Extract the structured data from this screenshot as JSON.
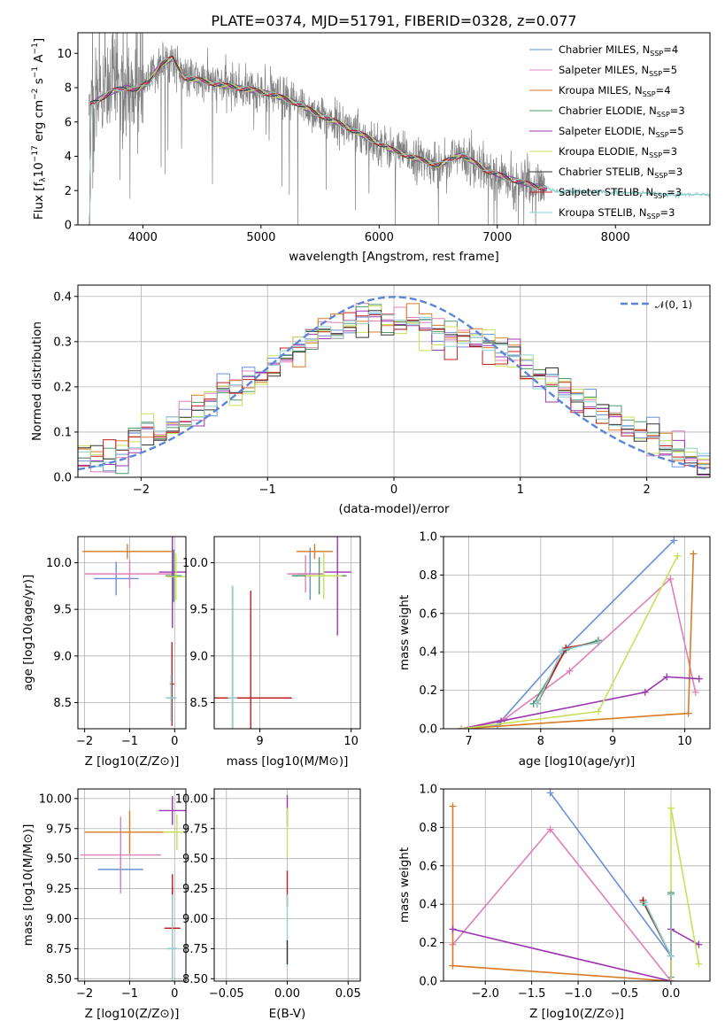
{
  "figure_title": "PLATE=0374, MJD=51791, FIBERID=0328, z=0.077",
  "models": [
    {
      "name": "Chabrier MILES",
      "nssp": "4",
      "color": "#6a8fd8"
    },
    {
      "name": "Salpeter MILES",
      "nssp": "5",
      "color": "#e080b8"
    },
    {
      "name": "Kroupa MILES",
      "nssp": "4",
      "color": "#d97a24"
    },
    {
      "name": "Chabrier ELODIE",
      "nssp": "3",
      "color": "#4f9a6a"
    },
    {
      "name": "Salpeter ELODIE",
      "nssp": "5",
      "color": "#9b36b0"
    },
    {
      "name": "Kroupa ELODIE",
      "nssp": "3",
      "color": "#c8e05a"
    },
    {
      "name": "Chabrier STELIB",
      "nssp": "3",
      "color": "#333333"
    },
    {
      "name": "Salpeter STELIB",
      "nssp": "3",
      "color": "#c02020"
    },
    {
      "name": "Kroupa STELIB",
      "nssp": "3",
      "color": "#8fd0d0"
    }
  ],
  "chart_data": [
    {
      "type": "line",
      "id": "spectrum",
      "xlabel": "wavelength [Angstrom, rest frame]",
      "ylabel": "Flux [f_λ 10^-17 erg cm^-2 s^-1 A^-1]",
      "xlim": [
        3450,
        8800
      ],
      "ylim": [
        0,
        11.2
      ],
      "xticks": [
        4000,
        5000,
        6000,
        7000,
        8000
      ],
      "yticks": [
        0,
        2,
        4,
        6,
        8,
        10
      ],
      "data_color": "#808080",
      "continuum": [
        [
          3550,
          7.0
        ],
        [
          3650,
          7.4
        ],
        [
          3750,
          7.8
        ],
        [
          3850,
          8.0
        ],
        [
          3950,
          7.9
        ],
        [
          4050,
          8.3
        ],
        [
          4150,
          9.4
        ],
        [
          4250,
          9.7
        ],
        [
          4350,
          8.6
        ],
        [
          4500,
          8.4
        ],
        [
          4700,
          8.1
        ],
        [
          4900,
          7.9
        ],
        [
          5100,
          7.6
        ],
        [
          5300,
          7.1
        ],
        [
          5500,
          6.4
        ],
        [
          5700,
          5.8
        ],
        [
          5900,
          5.1
        ],
        [
          6100,
          4.4
        ],
        [
          6300,
          3.9
        ],
        [
          6500,
          3.5
        ],
        [
          6600,
          3.8
        ],
        [
          6700,
          4.1
        ],
        [
          6900,
          3.2
        ],
        [
          7100,
          2.7
        ],
        [
          7300,
          2.3
        ],
        [
          7500,
          2.0
        ],
        [
          7800,
          1.9
        ],
        [
          8100,
          1.9
        ],
        [
          8400,
          1.8
        ],
        [
          8800,
          1.7
        ]
      ],
      "legend_location": "upper right"
    },
    {
      "type": "step",
      "id": "residuals",
      "xlabel": "(data-model)/error",
      "ylabel": "Normed distribution",
      "xlim": [
        -2.5,
        2.5
      ],
      "ylim": [
        0,
        0.425
      ],
      "xticks": [
        -2,
        -1,
        0,
        1,
        2
      ],
      "yticks": [
        0.0,
        0.1,
        0.2,
        0.3,
        0.4
      ],
      "bin_width": 0.1,
      "envelope": [
        [
          -2.5,
          0.035
        ],
        [
          -2.3,
          0.04
        ],
        [
          -2.1,
          0.06
        ],
        [
          -2.0,
          0.1
        ],
        [
          -1.8,
          0.1
        ],
        [
          -1.6,
          0.14
        ],
        [
          -1.4,
          0.17
        ],
        [
          -1.2,
          0.2
        ],
        [
          -1.0,
          0.24
        ],
        [
          -0.8,
          0.28
        ],
        [
          -0.6,
          0.31
        ],
        [
          -0.4,
          0.33
        ],
        [
          -0.2,
          0.36
        ],
        [
          0.0,
          0.34
        ],
        [
          0.2,
          0.35
        ],
        [
          0.4,
          0.31
        ],
        [
          0.6,
          0.3
        ],
        [
          0.8,
          0.29
        ],
        [
          1.0,
          0.26
        ],
        [
          1.2,
          0.22
        ],
        [
          1.4,
          0.18
        ],
        [
          1.6,
          0.15
        ],
        [
          1.8,
          0.12
        ],
        [
          2.0,
          0.09
        ],
        [
          2.2,
          0.06
        ],
        [
          2.4,
          0.04
        ],
        [
          2.5,
          0.04
        ]
      ],
      "gaussian": {
        "label": "𝒩(0, 1)",
        "color": "#5b86d6"
      },
      "legend_location": "upper right"
    },
    {
      "type": "errorbar",
      "id": "age-vs-z",
      "xlabel": "Z [log10(Z/Z⊙)]",
      "ylabel": "age [log10(age/yr)]",
      "xlim": [
        -2.15,
        0.25
      ],
      "ylim": [
        8.22,
        10.28
      ],
      "xticks": [
        -2,
        -1,
        0
      ],
      "yticks": [
        8.5,
        9.0,
        9.5,
        10.0
      ],
      "points": [
        {
          "m": 0,
          "x": -1.3,
          "y": 9.83,
          "xe": 0.5,
          "ye": 0.18
        },
        {
          "m": 1,
          "x": -1.0,
          "y": 9.88,
          "xe": 1.0,
          "ye": 0.15
        },
        {
          "m": 2,
          "x": -1.05,
          "y": 10.12,
          "xe": 1.0,
          "ye": 0.08
        },
        {
          "m": 3,
          "x": -0.02,
          "y": 9.86,
          "xe": 0.18,
          "ye": 0.28
        },
        {
          "m": 4,
          "x": -0.05,
          "y": 9.9,
          "xe": 0.3,
          "ye": 0.6
        },
        {
          "m": 5,
          "x": 0.03,
          "y": 9.85,
          "xe": 0.2,
          "ye": 0.25
        },
        {
          "m": 6,
          "x": -0.07,
          "y": 8.55,
          "xe": 0.1,
          "ye": 0.2
        },
        {
          "m": 7,
          "x": -0.06,
          "y": 8.7,
          "xe": 0.05,
          "ye": 0.45
        },
        {
          "m": 8,
          "x": -0.08,
          "y": 8.55,
          "xe": 0.12,
          "ye": 0.25
        }
      ]
    },
    {
      "type": "errorbar",
      "id": "age-vs-mass",
      "xlabel": "mass [log10(M/M⊙)]",
      "ylabel": "",
      "xlim": [
        8.5,
        10.1
      ],
      "ylim": [
        8.22,
        10.28
      ],
      "xticks": [
        9,
        10
      ],
      "yticks": [
        8.5,
        9.0,
        9.5,
        10.0
      ],
      "points": [
        {
          "m": 0,
          "x": 9.55,
          "y": 9.88,
          "xe": 0.15,
          "ye": 0.28
        },
        {
          "m": 1,
          "x": 9.5,
          "y": 9.88,
          "xe": 0.2,
          "ye": 0.2
        },
        {
          "m": 2,
          "x": 9.6,
          "y": 10.12,
          "xe": 0.2,
          "ye": 0.08
        },
        {
          "m": 3,
          "x": 9.65,
          "y": 9.86,
          "xe": 0.3,
          "ye": 0.2
        },
        {
          "m": 4,
          "x": 9.85,
          "y": 9.9,
          "xe": 0.15,
          "ye": 0.68
        },
        {
          "m": 5,
          "x": 9.7,
          "y": 9.86,
          "xe": 0.2,
          "ye": 0.25
        },
        {
          "m": 6,
          "x": 8.7,
          "y": 8.55,
          "xe": 0.05,
          "ye": 1.2
        },
        {
          "m": 7,
          "x": 8.9,
          "y": 8.55,
          "xe": 0.45,
          "ye": 1.15
        },
        {
          "m": 8,
          "x": 8.7,
          "y": 8.55,
          "xe": 0.05,
          "ye": 1.2
        }
      ]
    },
    {
      "type": "line",
      "id": "weight-vs-age",
      "xlabel": "age [log10(age/yr)]",
      "ylabel": "mass weight",
      "xlim": [
        6.65,
        10.35
      ],
      "ylim": [
        0,
        1.0
      ],
      "xticks": [
        7,
        8,
        9,
        10
      ],
      "yticks": [
        0.0,
        0.2,
        0.4,
        0.6,
        0.8,
        1.0
      ],
      "series": [
        {
          "m": 0,
          "x": [
            6.9,
            7.4,
            8.3,
            9.85
          ],
          "y": [
            0.0,
            0.02,
            0.4,
            0.98
          ]
        },
        {
          "m": 1,
          "x": [
            6.9,
            7.5,
            8.4,
            9.8,
            10.15
          ],
          "y": [
            0.0,
            0.05,
            0.3,
            0.78,
            0.19
          ]
        },
        {
          "m": 2,
          "x": [
            6.9,
            10.05,
            10.12
          ],
          "y": [
            0.0,
            0.08,
            0.91
          ]
        },
        {
          "m": 3,
          "x": [
            7.9,
            8.35,
            8.8
          ],
          "y": [
            0.13,
            0.41,
            0.46
          ]
        },
        {
          "m": 4,
          "x": [
            6.9,
            7.45,
            9.45,
            9.75,
            10.2
          ],
          "y": [
            0.0,
            0.04,
            0.19,
            0.27,
            0.26
          ]
        },
        {
          "m": 5,
          "x": [
            6.9,
            8.8,
            9.9
          ],
          "y": [
            0.0,
            0.09,
            0.9
          ]
        },
        {
          "m": 6,
          "x": [
            7.95,
            8.35,
            8.8
          ],
          "y": [
            0.13,
            0.42,
            0.45
          ]
        },
        {
          "m": 7,
          "x": [
            7.95,
            8.35,
            8.8
          ],
          "y": [
            0.13,
            0.42,
            0.45
          ]
        },
        {
          "m": 8,
          "x": [
            7.95,
            8.3,
            8.8
          ],
          "y": [
            0.13,
            0.41,
            0.45
          ]
        }
      ]
    },
    {
      "type": "errorbar",
      "id": "mass-vs-z",
      "xlabel": "Z [log10(Z/Z⊙)]",
      "ylabel": "mass [log10(M/M⊙)]",
      "xlim": [
        -2.15,
        0.25
      ],
      "ylim": [
        8.48,
        10.08
      ],
      "xticks": [
        -2,
        -1,
        0
      ],
      "yticks": [
        8.5,
        8.75,
        9.0,
        9.25,
        9.5,
        9.75,
        10.0
      ],
      "points": [
        {
          "m": 0,
          "x": -1.2,
          "y": 9.41,
          "xe": 0.5,
          "ye": 0.15
        },
        {
          "m": 1,
          "x": -1.2,
          "y": 9.53,
          "xe": 0.9,
          "ye": 0.32
        },
        {
          "m": 2,
          "x": -1.0,
          "y": 9.72,
          "xe": 1.0,
          "ye": 0.18
        },
        {
          "m": 3,
          "x": -0.05,
          "y": 8.75,
          "xe": 0.1,
          "ye": 0.2
        },
        {
          "m": 4,
          "x": -0.05,
          "y": 9.9,
          "xe": 0.3,
          "ye": 0.12
        },
        {
          "m": 5,
          "x": 0.05,
          "y": 9.72,
          "xe": 0.3,
          "ye": 0.15
        },
        {
          "m": 6,
          "x": -0.05,
          "y": 8.92,
          "xe": 0.15,
          "ye": 0.35
        },
        {
          "m": 7,
          "x": -0.05,
          "y": 8.92,
          "xe": 0.18,
          "ye": 0.45
        },
        {
          "m": 8,
          "x": -0.05,
          "y": 8.75,
          "xe": 0.12,
          "ye": 0.45
        }
      ]
    },
    {
      "type": "errorbar",
      "id": "mass-vs-ebv",
      "xlabel": "E(B-V)",
      "ylabel": "",
      "xlim": [
        -0.06,
        0.06
      ],
      "ylim": [
        8.48,
        10.08
      ],
      "xticks": [
        -0.05,
        0.0,
        0.05
      ],
      "xtick_labels": [
        "−0.05",
        "0.00",
        "0.05"
      ],
      "yticks": [
        8.5,
        8.75,
        9.0,
        9.25,
        9.5,
        9.75,
        10.0
      ],
      "points": [
        {
          "m": 4,
          "x": 0.0,
          "y": 9.9,
          "xe": 0.0,
          "ye": 0.13
        },
        {
          "m": 5,
          "x": 0.0,
          "y": 9.72,
          "xe": 0.0,
          "ye": 0.2
        },
        {
          "m": 7,
          "x": 0.0,
          "y": 9.25,
          "xe": 0.0,
          "ye": 0.15
        },
        {
          "m": 8,
          "x": 0.0,
          "y": 8.9,
          "xe": 0.0,
          "ye": 0.3
        },
        {
          "m": 6,
          "x": 0.0,
          "y": 8.72,
          "xe": 0.0,
          "ye": 0.1
        }
      ]
    },
    {
      "type": "line",
      "id": "weight-vs-z",
      "xlabel": "Z [log10(Z/Z⊙)]",
      "ylabel": "mass weight",
      "xlim": [
        -2.45,
        0.42
      ],
      "ylim": [
        0,
        1.0
      ],
      "xticks": [
        -2.0,
        -1.5,
        -1.0,
        -0.5,
        0.0
      ],
      "xtick_labels": [
        "−2.0",
        "−1.5",
        "−1.0",
        "−0.5",
        "0.0"
      ],
      "yticks": [
        0.0,
        0.2,
        0.4,
        0.6,
        0.8,
        1.0
      ],
      "series": [
        {
          "m": 0,
          "x": [
            -1.3,
            0.0,
            0.0
          ],
          "y": [
            0.98,
            0.13,
            0.02
          ]
        },
        {
          "m": 1,
          "x": [
            -2.35,
            -1.3,
            0.0
          ],
          "y": [
            0.19,
            0.79,
            0.0
          ]
        },
        {
          "m": 2,
          "x": [
            -2.35,
            -2.35,
            0.0
          ],
          "y": [
            0.91,
            0.08,
            0.0
          ]
        },
        {
          "m": 3,
          "x": [
            -0.3,
            0.0,
            0.0
          ],
          "y": [
            0.41,
            0.13,
            0.46
          ]
        },
        {
          "m": 4,
          "x": [
            -2.35,
            0.0,
            0.0,
            0.3
          ],
          "y": [
            0.27,
            0.0,
            0.27,
            0.19
          ]
        },
        {
          "m": 5,
          "x": [
            0.0,
            0.0,
            0.3
          ],
          "y": [
            0.0,
            0.9,
            0.09
          ]
        },
        {
          "m": 6,
          "x": [
            -0.3,
            0.0,
            0.0
          ],
          "y": [
            0.42,
            0.13,
            0.45
          ]
        },
        {
          "m": 7,
          "x": [
            -0.3,
            0.0,
            0.0
          ],
          "y": [
            0.42,
            0.13,
            0.45
          ]
        },
        {
          "m": 8,
          "x": [
            -0.28,
            0.0,
            0.0
          ],
          "y": [
            0.41,
            0.13,
            0.45
          ]
        }
      ]
    }
  ]
}
